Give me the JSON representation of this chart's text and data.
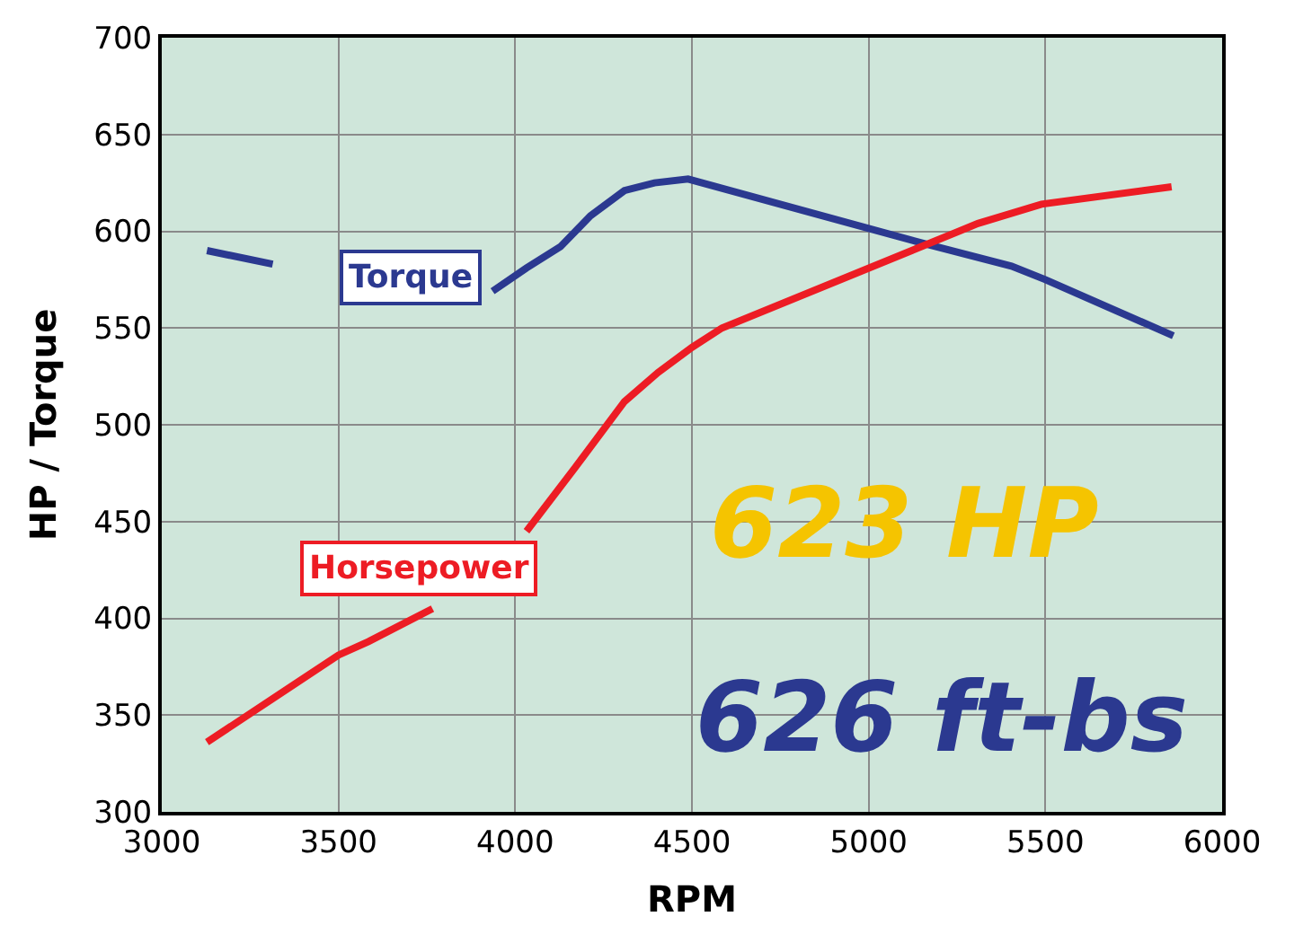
{
  "chart_data": {
    "type": "line",
    "xlabel": "RPM",
    "ylabel": "HP / Torque",
    "xlim": [
      3000,
      6000
    ],
    "xticks": [
      3000,
      3500,
      4000,
      4500,
      5000,
      5500,
      6000
    ],
    "ylim": [
      300,
      700
    ],
    "yticks": [
      300,
      350,
      400,
      450,
      500,
      550,
      600,
      650,
      700
    ],
    "grid": true,
    "legend": false,
    "marker": "none",
    "line_style": "solid",
    "series": [
      {
        "name": "Torque",
        "color": "#2b3990",
        "x": [
          3128,
          3314,
          3500,
          3800,
          3936,
          4032,
          4128,
          4213,
          4309,
          4394,
          4489,
          5149,
          5404,
          5500,
          5862
        ],
        "values": [
          590,
          583,
          null,
          null,
          569,
          581,
          592,
          608,
          621,
          625,
          627,
          594,
          582,
          575,
          546
        ]
      },
      {
        "name": "Horsepower",
        "color": "#ed1c24",
        "x": [
          3128,
          3500,
          3585,
          3766,
          3900,
          4032,
          4170,
          4309,
          4404,
          4500,
          4585,
          5309,
          5489,
          5857
        ],
        "values": [
          336,
          381,
          388,
          405,
          null,
          445,
          478,
          512,
          527,
          540,
          550,
          604,
          614,
          623
        ]
      }
    ],
    "annotations": [
      "623 HP",
      "626 ft-bs"
    ]
  }
}
